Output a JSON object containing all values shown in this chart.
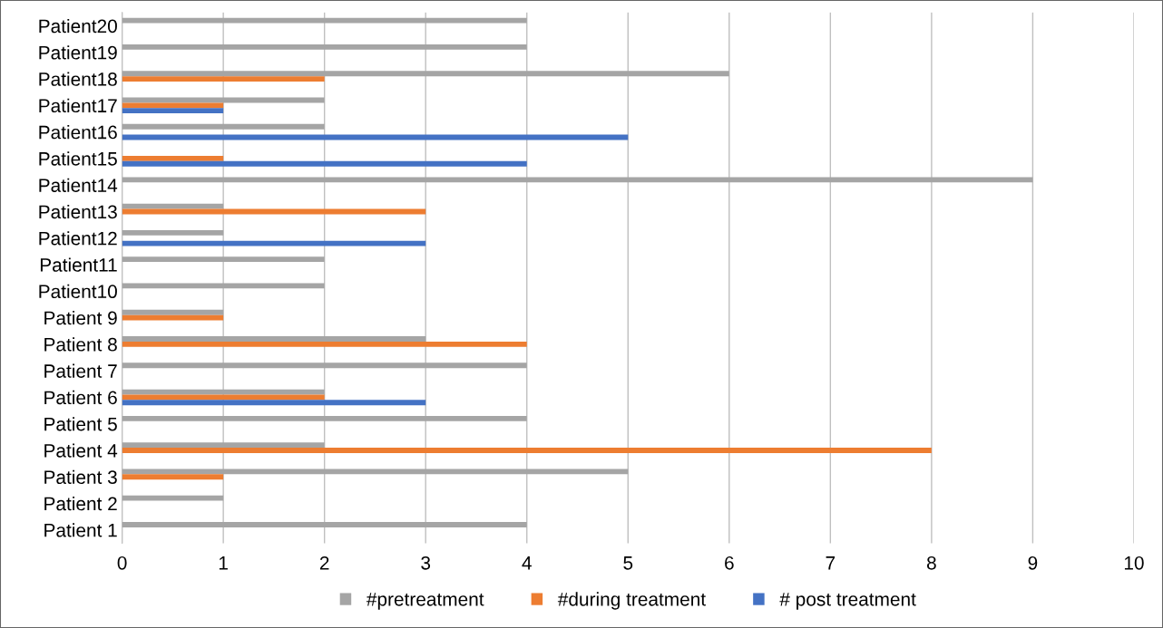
{
  "chart_data": {
    "type": "bar",
    "orientation": "horizontal",
    "categories": [
      "Patient20",
      "Patient19",
      "Patient18",
      "Patient17",
      "Patient16",
      "Patient15",
      "Patient14",
      "Patient13",
      "Patient12",
      "Patient11",
      "Patient10",
      "Patient 9",
      "Patient 8",
      "Patient 7",
      "Patient 6",
      "Patient 5",
      "Patient 4",
      "Patient 3",
      "Patient 2",
      "Patient 1"
    ],
    "series": [
      {
        "name": "#pretreatment",
        "color": "#a5a5a5",
        "values": [
          4,
          4,
          6,
          2,
          2,
          0,
          9,
          1,
          1,
          2,
          2,
          1,
          3,
          4,
          2,
          4,
          2,
          5,
          1,
          4
        ]
      },
      {
        "name": "#during treatment",
        "color": "#ed7d31",
        "values": [
          0,
          0,
          2,
          1,
          0,
          1,
          0,
          3,
          0,
          0,
          0,
          1,
          4,
          0,
          2,
          0,
          8,
          1,
          0,
          0
        ]
      },
      {
        "name": "# post treatment",
        "color": "#4472c4",
        "values": [
          0,
          0,
          0,
          1,
          5,
          4,
          0,
          0,
          3,
          0,
          0,
          0,
          0,
          0,
          3,
          0,
          0,
          0,
          0,
          0
        ]
      }
    ],
    "xlim": [
      0,
      10
    ],
    "xticks": [
      0,
      1,
      2,
      3,
      4,
      5,
      6,
      7,
      8,
      9,
      10
    ],
    "grid": "x",
    "legend": "bottom"
  }
}
